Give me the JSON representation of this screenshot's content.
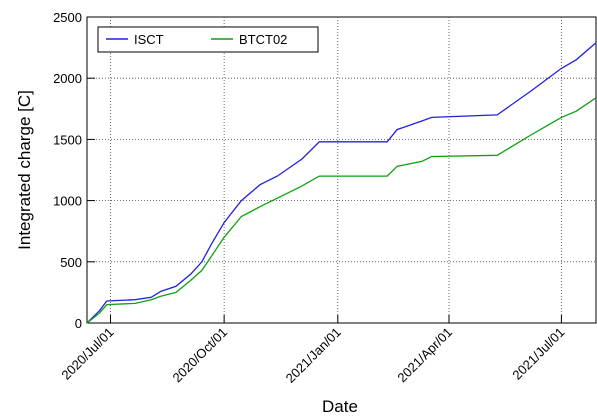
{
  "chart_data": {
    "type": "line",
    "xlabel": "Date",
    "ylabel": "Integrated charge [C]",
    "x": [
      "2020-06-12",
      "2020-06-22",
      "2020-06-28",
      "2020-07-21",
      "2020-08-03",
      "2020-08-11",
      "2020-08-23",
      "2020-09-04",
      "2020-09-13",
      "2020-09-21",
      "2020-10-01",
      "2020-10-15",
      "2020-10-30",
      "2020-11-13",
      "2020-12-03",
      "2020-12-17",
      "2021-02-10",
      "2021-02-18",
      "2021-03-10",
      "2021-03-18",
      "2021-05-10",
      "2021-06-07",
      "2021-07-01",
      "2021-07-13",
      "2021-07-29"
    ],
    "series": [
      {
        "name": "ISCT",
        "color": "#2020e0",
        "values": [
          0,
          100,
          180,
          190,
          210,
          260,
          300,
          400,
          500,
          650,
          820,
          1000,
          1130,
          1200,
          1340,
          1480,
          1480,
          1580,
          1650,
          1680,
          1700,
          1900,
          2080,
          2150,
          2290
        ]
      },
      {
        "name": "BTCT02",
        "color": "#10a010",
        "values": [
          0,
          80,
          150,
          160,
          190,
          220,
          250,
          350,
          430,
          550,
          700,
          870,
          950,
          1020,
          1120,
          1200,
          1200,
          1280,
          1320,
          1360,
          1370,
          1540,
          1680,
          1730,
          1840
        ]
      }
    ],
    "xlim": [
      "2020-06-12",
      "2021-07-29"
    ],
    "xticks": [
      {
        "value": "2020-07-01",
        "label": "2020/Jul/01"
      },
      {
        "value": "2020-10-01",
        "label": "2020/Oct/01"
      },
      {
        "value": "2021-01-01",
        "label": "2021/Jan/01"
      },
      {
        "value": "2021-04-01",
        "label": "2021/Apr/01"
      },
      {
        "value": "2021-07-01",
        "label": "2021/Jul/01"
      }
    ],
    "ylim": [
      0,
      2500
    ],
    "yticks": [
      0,
      500,
      1000,
      1500,
      2000,
      2500
    ],
    "grid": true,
    "legend": "upper left"
  }
}
